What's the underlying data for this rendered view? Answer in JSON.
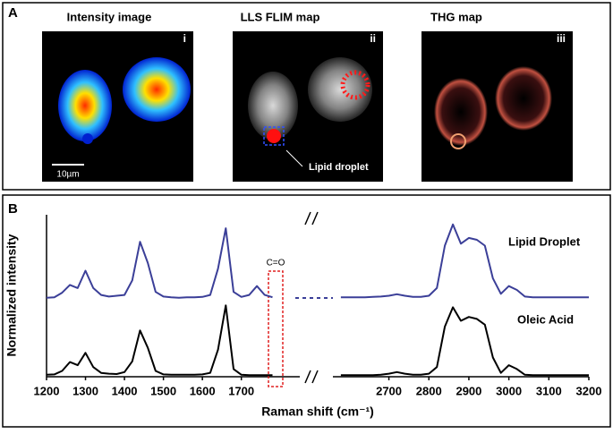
{
  "panel_a": {
    "label": "A",
    "images": [
      {
        "title": "Intensity image",
        "tag": "i"
      },
      {
        "title": "LLS FLIM map",
        "tag": "ii"
      },
      {
        "title": "THG map",
        "tag": "iii"
      }
    ],
    "scale_bar": "10µm",
    "annotation": "Lipid droplet"
  },
  "panel_b": {
    "label": "B"
  },
  "chart_data": [
    {
      "type": "line",
      "y_label": "Normalized intensity",
      "x_label": "Raman shift (cm⁻¹)",
      "annotation": "C=O",
      "x": [
        1200,
        1220,
        1240,
        1260,
        1280,
        1300,
        1320,
        1340,
        1360,
        1380,
        1400,
        1420,
        1440,
        1460,
        1480,
        1500,
        1520,
        1540,
        1560,
        1580,
        1600,
        1620,
        1640,
        1660,
        1680,
        1700,
        1720,
        1740,
        1760,
        1780
      ],
      "xlim": [
        1200,
        1850
      ],
      "xticks": [
        1200,
        1300,
        1400,
        1500,
        1600,
        1700
      ],
      "ylim": [
        0,
        4.2
      ],
      "series": [
        {
          "color": "#3b3f98",
          "values": [
            2.05,
            2.06,
            2.18,
            2.38,
            2.3,
            2.75,
            2.3,
            2.12,
            2.08,
            2.1,
            2.12,
            2.5,
            3.5,
            2.95,
            2.2,
            2.08,
            2.06,
            2.05,
            2.06,
            2.06,
            2.07,
            2.12,
            2.8,
            3.85,
            2.2,
            2.07,
            2.12,
            2.35,
            2.12,
            2.06
          ]
        },
        {
          "color": "#000000",
          "values": [
            0.05,
            0.06,
            0.15,
            0.38,
            0.3,
            0.62,
            0.25,
            0.1,
            0.08,
            0.07,
            0.12,
            0.4,
            1.2,
            0.75,
            0.15,
            0.06,
            0.05,
            0.05,
            0.05,
            0.05,
            0.06,
            0.1,
            0.7,
            1.85,
            0.2,
            0.05,
            0.04,
            0.04,
            0.04,
            0.04
          ]
        }
      ]
    },
    {
      "type": "line",
      "x": [
        2580,
        2600,
        2620,
        2640,
        2660,
        2680,
        2700,
        2720,
        2740,
        2760,
        2780,
        2800,
        2820,
        2840,
        2860,
        2880,
        2900,
        2920,
        2940,
        2960,
        2980,
        3000,
        3020,
        3040,
        3060,
        3080,
        3100,
        3120,
        3140,
        3160,
        3180,
        3200
      ],
      "xlim": [
        2560,
        3200
      ],
      "xticks": [
        2700,
        2800,
        2900,
        3000,
        3100,
        3200
      ],
      "ylim": [
        0,
        4.2
      ],
      "series": [
        {
          "name": "Lipid Droplet",
          "color": "#3b3f98",
          "values": [
            2.06,
            2.06,
            2.06,
            2.06,
            2.07,
            2.08,
            2.1,
            2.14,
            2.1,
            2.07,
            2.07,
            2.1,
            2.3,
            3.4,
            3.95,
            3.45,
            3.6,
            3.55,
            3.4,
            2.55,
            2.15,
            2.35,
            2.25,
            2.08,
            2.06,
            2.06,
            2.06,
            2.06,
            2.06,
            2.06,
            2.06,
            2.06
          ]
        },
        {
          "name": "Oleic Acid",
          "color": "#000000",
          "values": [
            0.04,
            0.04,
            0.04,
            0.04,
            0.04,
            0.05,
            0.08,
            0.12,
            0.08,
            0.05,
            0.05,
            0.08,
            0.25,
            1.3,
            1.8,
            1.45,
            1.55,
            1.5,
            1.35,
            0.5,
            0.1,
            0.3,
            0.2,
            0.05,
            0.04,
            0.04,
            0.04,
            0.04,
            0.04,
            0.04,
            0.04,
            0.04
          ]
        }
      ]
    }
  ]
}
